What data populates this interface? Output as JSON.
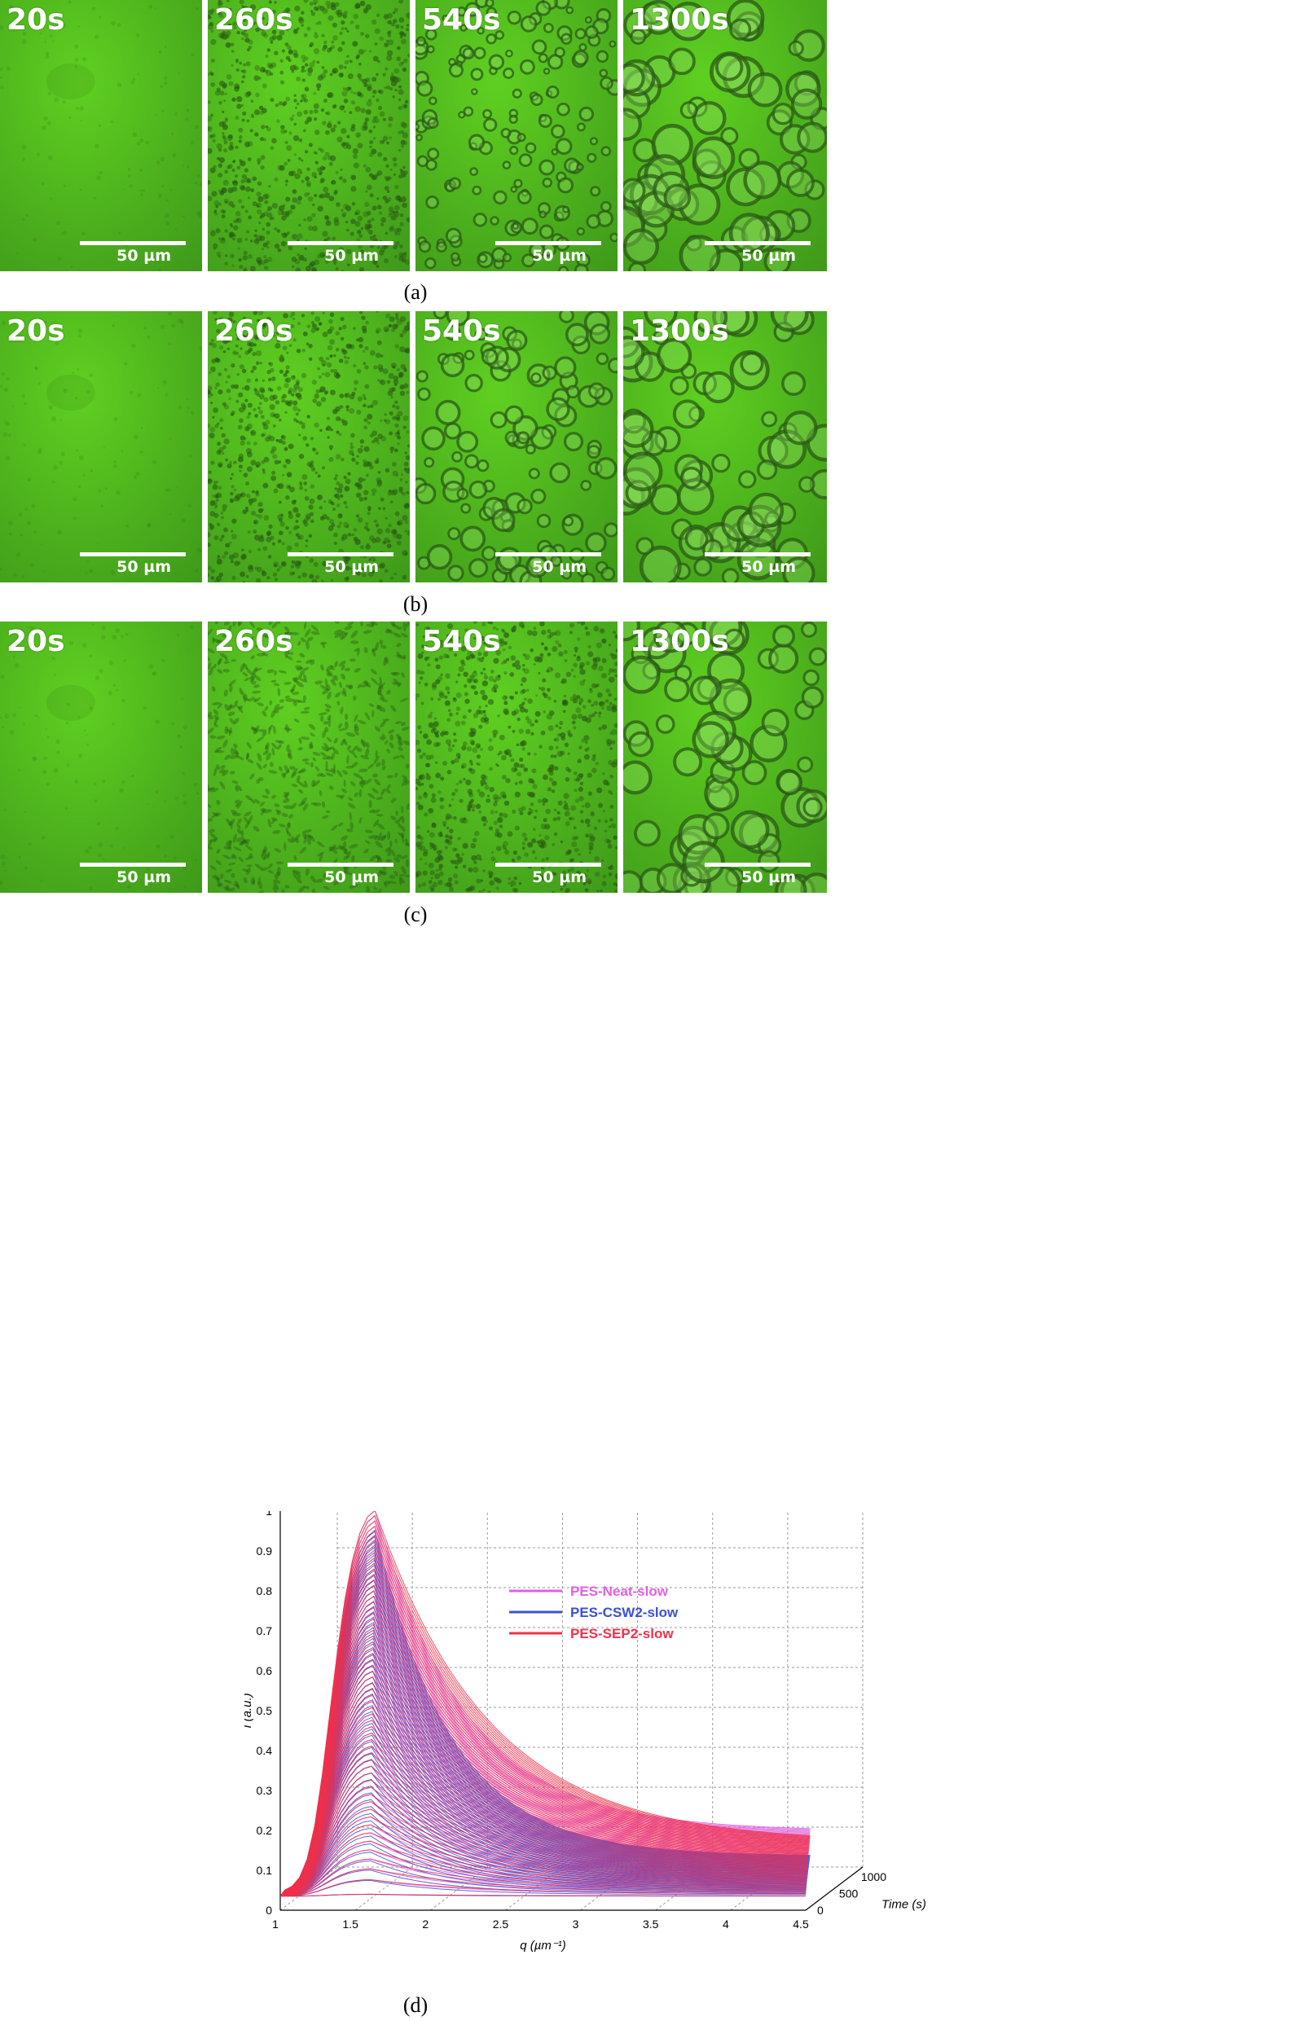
{
  "rows": [
    {
      "caption": "(a)",
      "panels": [
        {
          "time": "20s",
          "scale": "50 µm",
          "pattern": "uniform"
        },
        {
          "time": "260s",
          "scale": "50 µm",
          "pattern": "fine-dots"
        },
        {
          "time": "540s",
          "scale": "50 µm",
          "pattern": "small-rings"
        },
        {
          "time": "1300s",
          "scale": "50 µm",
          "pattern": "large-rings"
        }
      ]
    },
    {
      "caption": "(b)",
      "panels": [
        {
          "time": "20s",
          "scale": "50 µm",
          "pattern": "uniform"
        },
        {
          "time": "260s",
          "scale": "50 µm",
          "pattern": "fine-dots"
        },
        {
          "time": "540s",
          "scale": "50 µm",
          "pattern": "medium-rings"
        },
        {
          "time": "1300s",
          "scale": "50 µm",
          "pattern": "large-rings"
        }
      ]
    },
    {
      "caption": "(c)",
      "panels": [
        {
          "time": "20s",
          "scale": "50 µm",
          "pattern": "uniform"
        },
        {
          "time": "260s",
          "scale": "50 µm",
          "pattern": "worm"
        },
        {
          "time": "540s",
          "scale": "50 µm",
          "pattern": "fine-dots"
        },
        {
          "time": "1300s",
          "scale": "50 µm",
          "pattern": "large-rings"
        }
      ]
    }
  ],
  "micrograph_color": "#5fd021",
  "chart_caption": "(d)",
  "chart_data": {
    "type": "line",
    "subtype": "3d-waterfall",
    "xlabel": "q (µm⁻¹)",
    "ylabel": "I (a.u.)",
    "zlabel": "Time (s)",
    "xlim": [
      1,
      4.5
    ],
    "ylim": [
      0,
      1
    ],
    "zlim": [
      0,
      1300
    ],
    "x_ticks": [
      "1",
      "1.5",
      "2",
      "2.5",
      "3",
      "3.5",
      "4",
      "4.5"
    ],
    "y_ticks": [
      "0",
      "0.1",
      "0.2",
      "0.3",
      "0.4",
      "0.5",
      "0.6",
      "0.7",
      "0.8",
      "0.9",
      "1"
    ],
    "z_ticks": [
      "0",
      "500",
      "1000"
    ],
    "grid": true,
    "legend_position": "top-right",
    "series": [
      {
        "name": "PES-Neat-slow",
        "color": "#e060e0",
        "peak_q": 1.6,
        "peak_I": 1.0,
        "width": 0.6,
        "tail": 0.16,
        "n_curves": 60
      },
      {
        "name": "PES-CSW2-slow",
        "color": "#3a50d8",
        "peak_q": 1.6,
        "peak_I": 0.95,
        "width": 0.5,
        "tail": 0.1,
        "n_curves": 60
      },
      {
        "name": "PES-SEP2-slow",
        "color": "#f0304a",
        "peak_q": 1.6,
        "peak_I": 1.0,
        "width": 0.75,
        "tail": 0.13,
        "n_curves": 60
      }
    ]
  }
}
